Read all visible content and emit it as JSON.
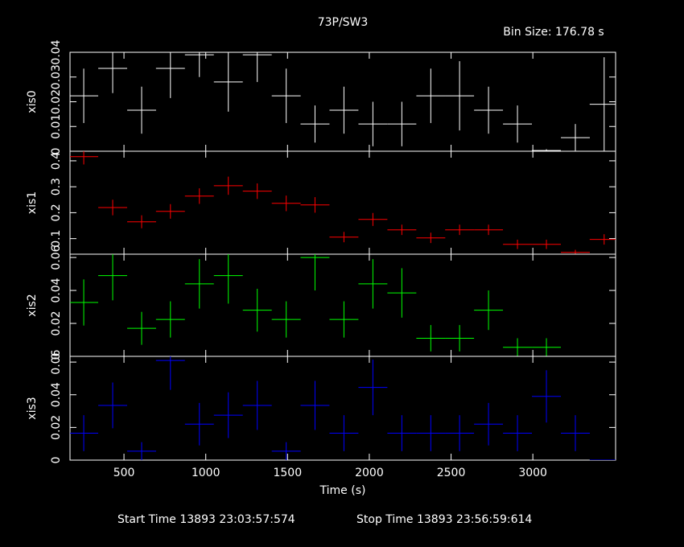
{
  "header": {
    "title": "73P/SW3",
    "bin_size": "Bin Size: 176.78 s"
  },
  "footer": {
    "start": "Start Time 13893 23:03:57:574",
    "stop": "Stop Time 13893 23:56:59:614"
  },
  "chart_data": [
    {
      "type": "errorbar",
      "ylabel": "xis0",
      "color": "#ffffff",
      "xerr": 88.39,
      "x": [
        254,
        431,
        608,
        784,
        961,
        1138,
        1315,
        1492,
        1668,
        1845,
        2022,
        2199,
        2376,
        2552,
        2729,
        2906,
        3083,
        3260,
        3436
      ],
      "values": [
        0.0224,
        0.0335,
        0.0166,
        0.0335,
        0.039,
        0.028,
        0.039,
        0.0224,
        0.011,
        0.0166,
        0.011,
        0.011,
        0.0224,
        0.0224,
        0.0166,
        0.011,
        0.0003,
        0.0055,
        0.019
      ],
      "errors": [
        0.011,
        0.01,
        0.0095,
        0.012,
        0.009,
        0.012,
        0.011,
        0.011,
        0.0075,
        0.0095,
        0.009,
        0.009,
        0.011,
        0.014,
        0.0095,
        0.0075,
        0.0005,
        0.0055,
        0.019
      ],
      "xlim": [
        170,
        3506
      ],
      "xticks": [
        500,
        1000,
        1500,
        2000,
        2500,
        3000
      ],
      "ylim": [
        0,
        0.04
      ],
      "yticks": [
        0,
        0.01,
        0.02,
        0.03,
        0.04
      ]
    },
    {
      "type": "errorbar",
      "ylabel": "xis1",
      "color": "#ff0000",
      "xerr": 88.39,
      "x": [
        254,
        431,
        608,
        784,
        961,
        1138,
        1315,
        1492,
        1668,
        1845,
        2022,
        2199,
        2376,
        2552,
        2729,
        2906,
        3083,
        3260,
        3436
      ],
      "values": [
        0.416,
        0.22,
        0.165,
        0.205,
        0.264,
        0.304,
        0.283,
        0.236,
        0.23,
        0.106,
        0.174,
        0.134,
        0.103,
        0.134,
        0.134,
        0.078,
        0.078,
        0.047,
        0.097
      ],
      "errors": [
        0.03,
        0.03,
        0.025,
        0.028,
        0.03,
        0.035,
        0.03,
        0.03,
        0.03,
        0.02,
        0.025,
        0.02,
        0.02,
        0.02,
        0.02,
        0.018,
        0.018,
        0.01,
        0.02
      ],
      "xlim": [
        170,
        3506
      ],
      "xticks": [
        500,
        1000,
        1500,
        2000,
        2500,
        3000
      ],
      "ylim": [
        0.04,
        0.437
      ],
      "yticks": [
        0.1,
        0.2,
        0.3,
        0.4
      ]
    },
    {
      "type": "errorbar",
      "ylabel": "xis2",
      "color": "#00ff00",
      "xerr": 88.39,
      "x": [
        254,
        431,
        608,
        784,
        961,
        1138,
        1315,
        1492,
        1668,
        1845,
        2022,
        2199,
        2376,
        2552,
        2729,
        2906,
        3083,
        3260,
        3436
      ],
      "values": [
        0.0327,
        0.049,
        0.017,
        0.0224,
        0.044,
        0.049,
        0.028,
        0.0224,
        0.06,
        0.0224,
        0.044,
        0.0385,
        0.011,
        0.011,
        0.028,
        0.0055,
        0.0055,
        0,
        0
      ],
      "errors": [
        0.014,
        0.015,
        0.01,
        0.011,
        0.015,
        0.017,
        0.013,
        0.011,
        0.02,
        0.011,
        0.015,
        0.015,
        0.008,
        0.008,
        0.012,
        0.0055,
        0.0055,
        0,
        0
      ],
      "xlim": [
        170,
        3506
      ],
      "xticks": [
        500,
        1000,
        1500,
        2000,
        2500,
        3000
      ],
      "ylim": [
        0,
        0.062
      ],
      "yticks": [
        0,
        0.02,
        0.04,
        0.06
      ]
    },
    {
      "type": "errorbar",
      "ylabel": "xis3",
      "xlabel": "Time (s)",
      "color": "#0000ff",
      "xerr": 88.39,
      "x": [
        254,
        431,
        608,
        784,
        961,
        1138,
        1315,
        1492,
        1668,
        1845,
        2022,
        2199,
        2376,
        2552,
        2729,
        2906,
        3083,
        3260,
        3436
      ],
      "values": [
        0.0165,
        0.0335,
        0.0055,
        0.061,
        0.022,
        0.0275,
        0.0335,
        0.0055,
        0.0335,
        0.0165,
        0.0445,
        0.0165,
        0.0165,
        0.0165,
        0.022,
        0.0165,
        0.039,
        0.0165,
        0
      ],
      "errors": [
        0.011,
        0.014,
        0.0055,
        0.018,
        0.013,
        0.014,
        0.015,
        0.0055,
        0.015,
        0.011,
        0.017,
        0.011,
        0.011,
        0.011,
        0.013,
        0.011,
        0.016,
        0.011,
        0
      ],
      "xlim": [
        170,
        3506
      ],
      "xticks": [
        500,
        1000,
        1500,
        2000,
        2500,
        3000
      ],
      "ylim": [
        0,
        0.0635
      ],
      "yticks": [
        0,
        0.02,
        0.04,
        0.06
      ]
    }
  ]
}
